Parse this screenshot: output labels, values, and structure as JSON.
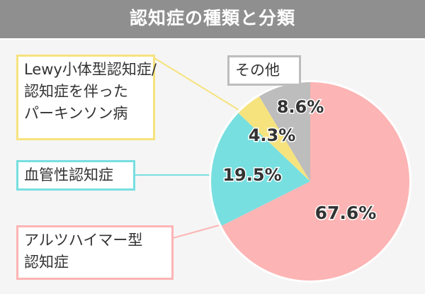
{
  "chart_data": {
    "type": "pie",
    "title": "認知症の種類と分類",
    "slices": [
      {
        "label": "アルツハイマー型認知症",
        "label_lines": [
          "アルツハイマー型",
          "認知症"
        ],
        "value": 67.6,
        "display": "67.6%",
        "color": "#fdb4b4"
      },
      {
        "label": "血管性認知症",
        "label_lines": [
          "血管性認知症"
        ],
        "value": 19.5,
        "display": "19.5%",
        "color": "#78dfe0"
      },
      {
        "label": "Lewy小体型認知症/認知症を伴ったパーキンソン病",
        "label_lines": [
          "Lewy小体型認知症/",
          "認知症を伴った",
          "パーキンソン病"
        ],
        "value": 4.3,
        "display": "4.3%",
        "color": "#f6e37e"
      },
      {
        "label": "その他",
        "label_lines": [
          "その他"
        ],
        "value": 8.6,
        "display": "8.6%",
        "color": "#bdbdbd"
      }
    ],
    "start": "top",
    "direction": "clockwise",
    "legend": "callout boxes"
  },
  "header_color": "#8f8f8f"
}
